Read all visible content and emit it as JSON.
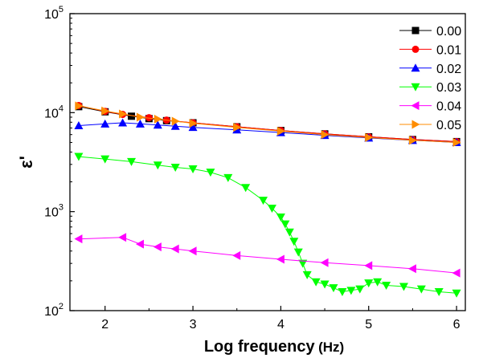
{
  "chart_data": {
    "type": "line",
    "xlabel_main": "Log frequency",
    "xlabel_unit": "(Hz)",
    "ylabel": "ε'",
    "xlim": [
      1.6,
      6.1
    ],
    "ylim": [
      100,
      100000
    ],
    "y_scale": "log",
    "x_ticks": [
      {
        "value": 2,
        "label": "2"
      },
      {
        "value": 3,
        "label": "3"
      },
      {
        "value": 4,
        "label": "4"
      },
      {
        "value": 5,
        "label": "5"
      },
      {
        "value": 6,
        "label": "6"
      }
    ],
    "y_ticks": [
      {
        "value": 100,
        "base": "10",
        "exp": "2"
      },
      {
        "value": 1000,
        "base": "10",
        "exp": "3"
      },
      {
        "value": 10000,
        "base": "10",
        "exp": "4"
      },
      {
        "value": 100000,
        "base": "10",
        "exp": "5"
      }
    ],
    "legend_position": "top-right",
    "series": [
      {
        "name": "0.00",
        "color": "#000000",
        "marker": "square",
        "x": [
          1.7,
          2.0,
          2.3,
          2.5,
          2.7,
          3.0,
          3.5,
          4.0,
          4.5,
          5.0,
          5.5,
          6.0
        ],
        "y": [
          11500,
          10200,
          9200,
          8700,
          8300,
          7900,
          7200,
          6600,
          6100,
          5700,
          5350,
          5100
        ]
      },
      {
        "name": "0.01",
        "color": "#ff0000",
        "marker": "circle",
        "x": [
          1.7,
          2.0,
          2.2,
          2.5,
          2.7,
          3.0,
          3.5,
          4.0,
          4.5,
          5.0,
          5.5,
          6.0
        ],
        "y": [
          11800,
          10300,
          9600,
          8900,
          8400,
          7900,
          7200,
          6600,
          6100,
          5700,
          5350,
          5100
        ]
      },
      {
        "name": "0.02",
        "color": "#0000ff",
        "marker": "triangle-up",
        "x": [
          1.7,
          2.0,
          2.2,
          2.4,
          2.6,
          2.8,
          3.0,
          3.5,
          4.0,
          4.5,
          5.0,
          5.5,
          6.0
        ],
        "y": [
          7400,
          7700,
          7900,
          7700,
          7500,
          7300,
          7100,
          6700,
          6300,
          5900,
          5550,
          5250,
          5000
        ]
      },
      {
        "name": "0.03",
        "color": "#00ff00",
        "marker": "triangle-down",
        "x": [
          1.7,
          2.0,
          2.3,
          2.6,
          2.8,
          3.0,
          3.2,
          3.4,
          3.6,
          3.8,
          3.9,
          4.0,
          4.05,
          4.1,
          4.15,
          4.2,
          4.25,
          4.3,
          4.4,
          4.5,
          4.6,
          4.7,
          4.8,
          4.9,
          5.0,
          5.1,
          5.2,
          5.4,
          5.6,
          5.8,
          6.0
        ],
        "y": [
          3600,
          3400,
          3200,
          2950,
          2800,
          2700,
          2500,
          2200,
          1750,
          1300,
          1080,
          880,
          750,
          620,
          500,
          390,
          300,
          230,
          195,
          185,
          170,
          155,
          160,
          165,
          190,
          195,
          180,
          175,
          165,
          155,
          150
        ]
      },
      {
        "name": "0.04",
        "color": "#ff00ff",
        "marker": "triangle-left",
        "x": [
          1.7,
          2.2,
          2.4,
          2.6,
          2.8,
          3.0,
          3.5,
          4.0,
          4.5,
          5.0,
          5.5,
          6.0
        ],
        "y": [
          530,
          550,
          470,
          440,
          420,
          400,
          360,
          330,
          305,
          285,
          265,
          240
        ]
      },
      {
        "name": "0.05",
        "color": "#ff8c00",
        "marker": "triangle-right",
        "x": [
          1.7,
          2.0,
          2.2,
          2.4,
          2.6,
          2.8,
          3.0,
          3.5,
          4.0,
          4.5,
          5.0,
          5.5,
          6.0
        ],
        "y": [
          11700,
          10400,
          9700,
          9000,
          8600,
          8200,
          7800,
          7100,
          6500,
          6000,
          5600,
          5250,
          5000
        ]
      }
    ]
  }
}
